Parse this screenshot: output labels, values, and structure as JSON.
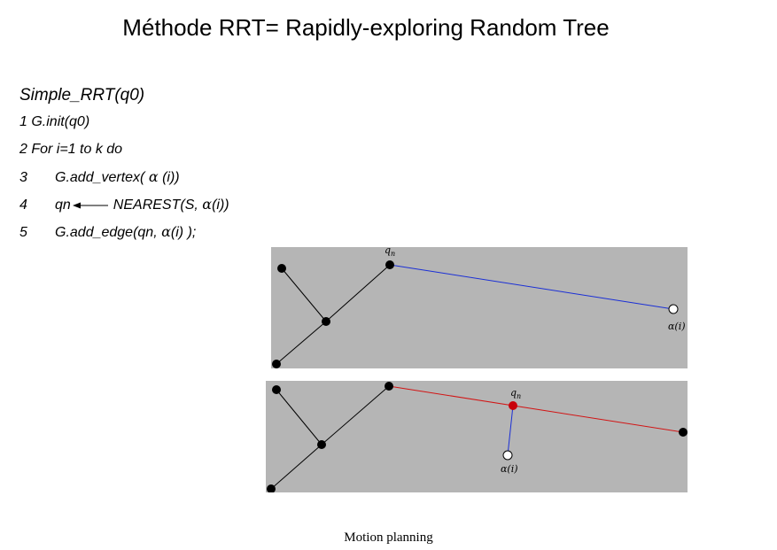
{
  "title": "Méthode RRT= Rapidly-exploring Random Tree",
  "algorithm": {
    "signature": "Simple_RRT(q0)",
    "line1": "1 G.init(q0)",
    "line2": "2 For i=1 to k do",
    "line3": {
      "num": "3",
      "pre": "G.add_vertex( ",
      "alpha": "α",
      "post": " (i))"
    },
    "line4": {
      "num": "4",
      "qn": "qn",
      "nearest_pre": "NEAREST(S, ",
      "alpha": "α",
      "nearest_post": "(i))"
    },
    "line5": {
      "num": "5",
      "pre": "G.add_edge(qn, ",
      "alpha": "α",
      "post": "(i) );"
    }
  },
  "diagrams": {
    "qn_label": "q",
    "qn_sub": "n",
    "alpha_label": "α(i)"
  },
  "colors": {
    "panel_bg": "#b5b5b5",
    "tree_edge": "#000000",
    "extension_edge_top": "#1a2fd6",
    "extension_edge_bottom": "#d21414",
    "new_edge": "#1a2fd6",
    "qn_highlight": "#c8000a",
    "sample_node": "#ffffff"
  },
  "footer": "Motion planning"
}
